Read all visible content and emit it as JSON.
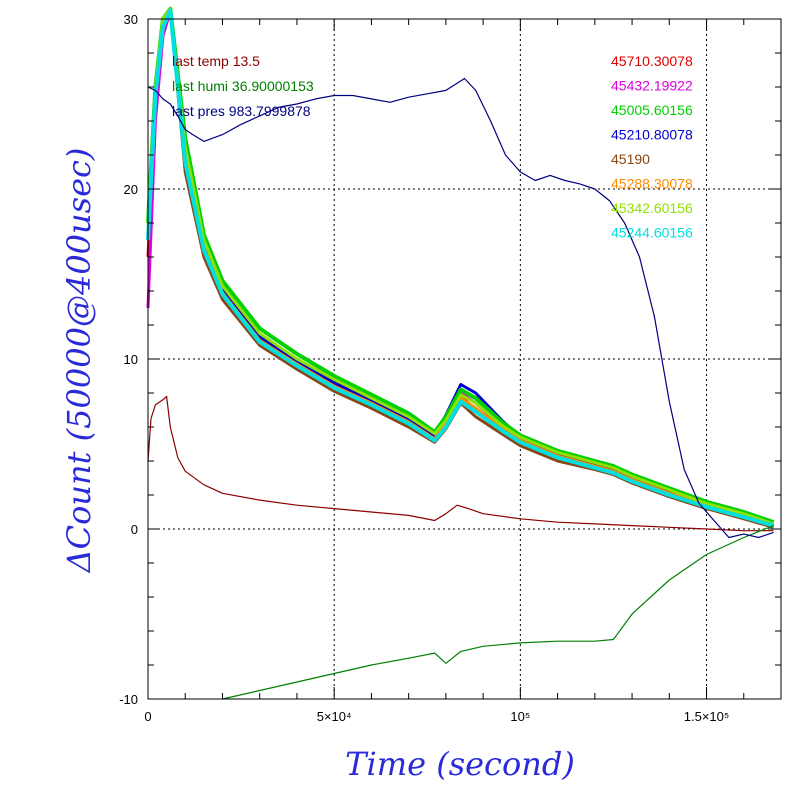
{
  "chart_data": {
    "type": "line",
    "xlabel": "Time (second)",
    "ylabel": "ΔCount (50000@400usec)",
    "xlim": [
      0,
      170000
    ],
    "ylim": [
      -10,
      30
    ],
    "x_ticks": [
      {
        "value": 0,
        "label": "0"
      },
      {
        "value": 50000,
        "label": "5×10⁴"
      },
      {
        "value": 100000,
        "label": "10⁵"
      },
      {
        "value": 150000,
        "label": "1.5×10⁵"
      }
    ],
    "y_ticks": [
      {
        "value": -10,
        "label": "-10"
      },
      {
        "value": 0,
        "label": "0"
      },
      {
        "value": 10,
        "label": "10"
      },
      {
        "value": 20,
        "label": "20"
      },
      {
        "value": 30,
        "label": "30"
      }
    ],
    "grid": "dotted at major ticks",
    "left_legend": [
      {
        "text": "last temp 13.5",
        "color": "#8b0000"
      },
      {
        "text": "last humi 36.90000153",
        "color": "#008000"
      },
      {
        "text": "last pres 983.7999878",
        "color": "#000080"
      }
    ],
    "right_legend": [
      {
        "text": "45710.30078",
        "color": "#e00000"
      },
      {
        "text": "45432.19922",
        "color": "#e000e0"
      },
      {
        "text": "45005.60156",
        "color": "#00d000"
      },
      {
        "text": "45210.80078",
        "color": "#0000d0"
      },
      {
        "text": "45190",
        "color": "#8b4513"
      },
      {
        "text": "45288.30078",
        "color": "#ff8c00"
      },
      {
        "text": "45342.60156",
        "color": "#90e000"
      },
      {
        "text": "45244.60156",
        "color": "#00e0e0"
      }
    ],
    "series": [
      {
        "color": "#8b4513",
        "width": 3,
        "x": [
          0,
          2000,
          4000,
          6000,
          10000,
          15000,
          20000,
          30000,
          40000,
          50000,
          60000,
          70000,
          77000,
          80000,
          84000,
          88000,
          95000,
          100000,
          110000,
          120000,
          125000,
          130000,
          140000,
          150000,
          160000,
          168000
        ],
        "y": [
          17,
          25,
          29,
          30.5,
          21,
          16,
          13.5,
          10.8,
          9.4,
          8.1,
          7.1,
          6.0,
          5.1,
          5.9,
          7.4,
          6.6,
          5.6,
          4.9,
          4.0,
          3.5,
          3.2,
          2.7,
          1.9,
          1.2,
          0.6,
          0.1
        ]
      },
      {
        "color": "#e00000",
        "width": 3,
        "x": [
          0,
          2000,
          4000,
          6000,
          10000,
          15000,
          20000,
          30000,
          40000,
          50000,
          60000,
          70000,
          77000,
          80000,
          84000,
          88000,
          95000,
          100000,
          110000,
          120000,
          125000,
          130000,
          140000,
          150000,
          160000,
          168000
        ],
        "y": [
          16,
          25,
          29.5,
          31,
          21.5,
          16.3,
          13.8,
          11.0,
          9.6,
          8.3,
          7.3,
          6.2,
          5.2,
          6.1,
          7.8,
          7.0,
          5.8,
          5.1,
          4.2,
          3.6,
          3.3,
          2.8,
          2.0,
          1.3,
          0.7,
          0.2
        ]
      },
      {
        "color": "#e000e0",
        "width": 3,
        "x": [
          0,
          2000,
          4000,
          6000,
          10000,
          15000,
          20000,
          30000,
          40000,
          50000,
          60000,
          70000,
          77000,
          80000,
          84000,
          88000,
          95000,
          100000,
          110000,
          120000,
          125000,
          130000,
          140000,
          150000,
          160000,
          168000
        ],
        "y": [
          13,
          24,
          29,
          30.5,
          22,
          16.8,
          14.2,
          11.3,
          9.8,
          8.5,
          7.5,
          6.4,
          5.4,
          6.3,
          8.0,
          7.4,
          6.0,
          5.2,
          4.3,
          3.7,
          3.4,
          2.9,
          2.1,
          1.4,
          0.8,
          0.3
        ]
      },
      {
        "color": "#0000d0",
        "width": 3,
        "x": [
          0,
          2000,
          4000,
          6000,
          10000,
          15000,
          20000,
          30000,
          40000,
          50000,
          60000,
          70000,
          77000,
          80000,
          84000,
          88000,
          95000,
          100000,
          110000,
          120000,
          125000,
          130000,
          140000,
          150000,
          160000,
          168000
        ],
        "y": [
          17,
          26,
          30,
          31,
          22,
          16.7,
          14.0,
          11.3,
          9.9,
          8.6,
          7.6,
          6.5,
          5.5,
          6.7,
          8.5,
          8.0,
          6.4,
          5.4,
          4.4,
          3.8,
          3.5,
          3.0,
          2.2,
          1.5,
          0.9,
          0.3
        ]
      },
      {
        "color": "#00d000",
        "width": 4,
        "x": [
          0,
          2000,
          4000,
          6000,
          10000,
          15000,
          20000,
          30000,
          40000,
          50000,
          60000,
          70000,
          77000,
          80000,
          84000,
          88000,
          95000,
          100000,
          110000,
          120000,
          125000,
          130000,
          140000,
          150000,
          160000,
          168000
        ],
        "y": [
          18,
          26,
          30,
          31,
          23,
          17.3,
          14.6,
          11.8,
          10.3,
          9.0,
          7.9,
          6.8,
          5.7,
          6.6,
          8.2,
          7.7,
          6.3,
          5.5,
          4.6,
          4.0,
          3.7,
          3.2,
          2.4,
          1.6,
          1.0,
          0.4
        ]
      },
      {
        "color": "#ff8c00",
        "width": 3,
        "x": [
          0,
          2000,
          4000,
          6000,
          10000,
          15000,
          20000,
          30000,
          40000,
          50000,
          60000,
          70000,
          77000,
          80000,
          84000,
          88000,
          95000,
          100000,
          110000,
          120000,
          125000,
          130000,
          140000,
          150000,
          160000,
          168000
        ],
        "y": [
          17,
          25.5,
          29.5,
          30.5,
          21.8,
          16.5,
          13.9,
          11.1,
          9.7,
          8.4,
          7.4,
          6.3,
          5.3,
          6.2,
          7.7,
          7.1,
          5.9,
          5.2,
          4.3,
          3.7,
          3.4,
          2.9,
          2.1,
          1.4,
          0.8,
          0.2
        ]
      },
      {
        "color": "#90e000",
        "width": 3,
        "x": [
          0,
          2000,
          4000,
          6000,
          10000,
          15000,
          20000,
          30000,
          40000,
          50000,
          60000,
          70000,
          77000,
          80000,
          84000,
          88000,
          95000,
          100000,
          110000,
          120000,
          125000,
          130000,
          140000,
          150000,
          160000,
          168000
        ],
        "y": [
          18,
          26,
          30,
          31,
          22.5,
          17.0,
          14.3,
          11.5,
          10.0,
          8.8,
          7.7,
          6.6,
          5.6,
          6.4,
          7.9,
          7.4,
          6.1,
          5.4,
          4.5,
          3.9,
          3.6,
          3.1,
          2.3,
          1.5,
          0.9,
          0.3
        ]
      },
      {
        "color": "#00e0e0",
        "width": 4,
        "x": [
          0,
          2000,
          4000,
          6000,
          10000,
          15000,
          20000,
          30000,
          40000,
          50000,
          60000,
          70000,
          77000,
          80000,
          84000,
          88000,
          95000,
          100000,
          110000,
          120000,
          125000,
          130000,
          140000,
          150000,
          160000,
          168000
        ],
        "y": [
          17,
          25.5,
          29.5,
          30.5,
          21.6,
          16.4,
          13.8,
          11.0,
          9.6,
          8.3,
          7.3,
          6.2,
          5.2,
          6.0,
          7.5,
          6.9,
          5.8,
          5.1,
          4.2,
          3.6,
          3.3,
          2.8,
          2.0,
          1.3,
          0.7,
          0.2
        ]
      },
      {
        "color": "#8b0000",
        "width": 1.2,
        "x": [
          0,
          800,
          2000,
          4000,
          5000,
          6000,
          8000,
          10000,
          15000,
          20000,
          30000,
          40000,
          50000,
          60000,
          70000,
          77000,
          80000,
          83000,
          86000,
          90000,
          100000,
          110000,
          120000,
          130000,
          140000,
          150000,
          160000,
          168000
        ],
        "y": [
          4,
          6.5,
          7.3,
          7.6,
          7.8,
          6.0,
          4.2,
          3.4,
          2.6,
          2.1,
          1.7,
          1.4,
          1.2,
          1.0,
          0.8,
          0.5,
          0.9,
          1.4,
          1.2,
          0.9,
          0.6,
          0.4,
          0.3,
          0.2,
          0.1,
          0.0,
          -0.1,
          -0.1
        ]
      },
      {
        "color": "#008000",
        "width": 1.2,
        "x": [
          20000,
          30000,
          40000,
          50000,
          60000,
          70000,
          77000,
          80000,
          84000,
          90000,
          100000,
          110000,
          120000,
          125000,
          130000,
          140000,
          150000,
          160000,
          168000
        ],
        "y": [
          -10,
          -9.5,
          -9.0,
          -8.5,
          -8.0,
          -7.6,
          -7.3,
          -7.9,
          -7.2,
          -6.9,
          -6.7,
          -6.6,
          -6.6,
          -6.5,
          -5.0,
          -3.0,
          -1.5,
          -0.5,
          0.2
        ]
      },
      {
        "color": "#000080",
        "width": 1.2,
        "x": [
          0,
          2000,
          4000,
          6000,
          8000,
          10000,
          12000,
          15000,
          20000,
          25000,
          30000,
          35000,
          40000,
          45000,
          50000,
          55000,
          60000,
          65000,
          70000,
          75000,
          80000,
          85000,
          88000,
          92000,
          96000,
          100000,
          104000,
          108000,
          112000,
          116000,
          120000,
          124000,
          128000,
          132000,
          136000,
          140000,
          144000,
          148000,
          152000,
          156000,
          160000,
          164000,
          168000
        ],
        "y": [
          26,
          25.8,
          25.3,
          25,
          24.3,
          23.5,
          23.2,
          22.8,
          23.2,
          23.8,
          24.3,
          24.8,
          25,
          25.3,
          25.5,
          25.5,
          25.3,
          25.1,
          25.4,
          25.6,
          25.8,
          26.5,
          25.8,
          24,
          22,
          21,
          20.5,
          20.8,
          20.5,
          20.3,
          20.0,
          19.3,
          18.0,
          16.0,
          12.5,
          7.5,
          3.5,
          1.5,
          0.5,
          -0.5,
          -0.3,
          -0.5,
          -0.2
        ]
      }
    ]
  }
}
